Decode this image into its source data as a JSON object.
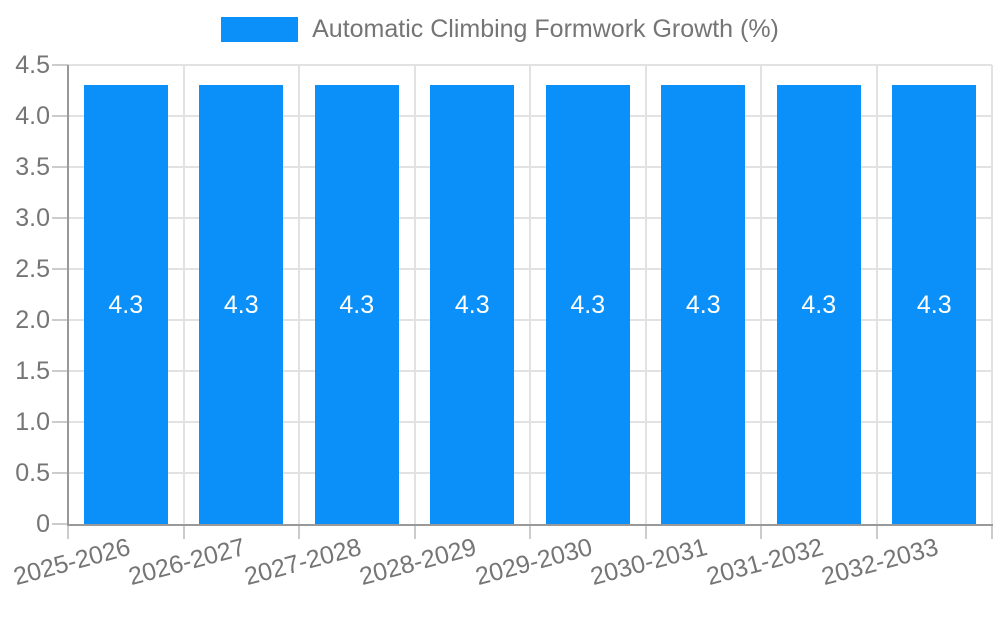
{
  "legend": {
    "label": "Automatic Climbing Formwork Growth (%)"
  },
  "chart_data": {
    "type": "bar",
    "title": "Automatic Climbing Formwork Growth (%)",
    "categories": [
      "2025-2026",
      "2026-2027",
      "2027-2028",
      "2028-2029",
      "2029-2030",
      "2030-2031",
      "2031-2032",
      "2032-2033"
    ],
    "series": [
      {
        "name": "Automatic Climbing Formwork Growth (%)",
        "values": [
          4.3,
          4.3,
          4.3,
          4.3,
          4.3,
          4.3,
          4.3,
          4.3
        ]
      }
    ],
    "bar_labels": [
      "4.3",
      "4.3",
      "4.3",
      "4.3",
      "4.3",
      "4.3",
      "4.3",
      "4.3"
    ],
    "xlabel": "",
    "ylabel": "",
    "ylim": [
      0,
      4.5
    ],
    "ytick_step": 0.5,
    "ytick_labels": [
      "0",
      "0.5",
      "1.0",
      "1.5",
      "2.0",
      "2.5",
      "3.0",
      "3.5",
      "4.0",
      "4.5"
    ],
    "grid": true,
    "legend_position": "top",
    "bar_label_position": "middle",
    "colors": {
      "bar": "#0A90F8",
      "grid": "#E2E2E2",
      "axis": "#999999",
      "tick": "#CCCCCC",
      "text": "#757575",
      "bar_label": "#FFFFFF",
      "background": "#FFFFFF"
    }
  }
}
